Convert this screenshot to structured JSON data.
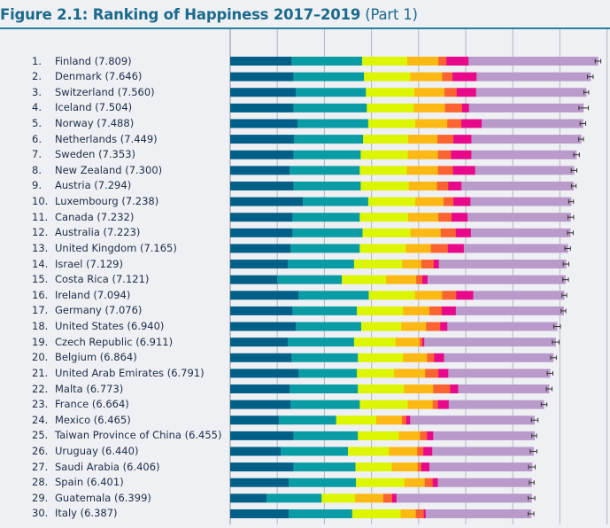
{
  "title": {
    "main": "Figure 2.1: Ranking of Happiness 2017–2019",
    "part": "(Part 1)"
  },
  "chart_data": {
    "type": "bar",
    "orientation": "horizontal",
    "stacked": true,
    "xlim": [
      0,
      8
    ],
    "grid": true,
    "error_bars": true,
    "segment_colors": [
      "#005f87",
      "#0a9ca5",
      "#dcf500",
      "#fdb913",
      "#fb6330",
      "#e8098a",
      "#b99aca"
    ],
    "rows": [
      {
        "rank": "1.",
        "label": "Finland (7.809)",
        "score": 7.809,
        "segments": [
          1.3,
          1.5,
          0.96,
          0.66,
          0.17,
          0.47,
          2.75
        ],
        "ci": 0.06
      },
      {
        "rank": "2.",
        "label": "Denmark (7.646)",
        "score": 7.646,
        "segments": [
          1.34,
          1.5,
          0.98,
          0.68,
          0.22,
          0.51,
          2.42
        ],
        "ci": 0.06
      },
      {
        "rank": "3.",
        "label": "Switzerland (7.560)",
        "score": 7.56,
        "segments": [
          1.39,
          1.49,
          1.03,
          0.64,
          0.26,
          0.41,
          2.34
        ],
        "ci": 0.05
      },
      {
        "rank": "4.",
        "label": "Iceland (7.504)",
        "score": 7.504,
        "segments": [
          1.34,
          1.56,
          1.0,
          0.66,
          0.36,
          0.15,
          2.43
        ],
        "ci": 0.1
      },
      {
        "rank": "5.",
        "label": "Norway (7.488)",
        "score": 7.488,
        "segments": [
          1.43,
          1.5,
          1.0,
          0.68,
          0.3,
          0.43,
          2.15
        ],
        "ci": 0.06
      },
      {
        "rank": "6.",
        "label": "Netherlands (7.449)",
        "score": 7.449,
        "segments": [
          1.35,
          1.47,
          0.96,
          0.62,
          0.34,
          0.38,
          2.33
        ],
        "ci": 0.05
      },
      {
        "rank": "7.",
        "label": "Sweden (7.353)",
        "score": 7.353,
        "segments": [
          1.34,
          1.43,
          1.0,
          0.64,
          0.28,
          0.43,
          2.23
        ],
        "ci": 0.06
      },
      {
        "rank": "8.",
        "label": "New Zealand (7.300)",
        "score": 7.3,
        "segments": [
          1.26,
          1.49,
          1.0,
          0.66,
          0.32,
          0.47,
          2.1
        ],
        "ci": 0.06
      },
      {
        "rank": "9.",
        "label": "Austria (7.294)",
        "score": 7.294,
        "segments": [
          1.34,
          1.43,
          1.02,
          0.6,
          0.24,
          0.28,
          2.38
        ],
        "ci": 0.05
      },
      {
        "rank": "10.",
        "label": "Luxembourg (7.238)",
        "score": 7.238,
        "segments": [
          1.54,
          1.39,
          1.0,
          0.6,
          0.21,
          0.36,
          2.14
        ],
        "ci": 0.05
      },
      {
        "rank": "11.",
        "label": "Canada (7.232)",
        "score": 7.232,
        "segments": [
          1.32,
          1.43,
          1.03,
          0.64,
          0.28,
          0.34,
          2.19
        ],
        "ci": 0.06
      },
      {
        "rank": "12.",
        "label": "Australia (7.223)",
        "score": 7.223,
        "segments": [
          1.32,
          1.49,
          1.02,
          0.64,
          0.32,
          0.32,
          2.11
        ],
        "ci": 0.06
      },
      {
        "rank": "13.",
        "label": "United Kingdom (7.165)",
        "score": 7.165,
        "segments": [
          1.28,
          1.47,
          0.98,
          0.53,
          0.36,
          0.34,
          2.21
        ],
        "ci": 0.06
      },
      {
        "rank": "14.",
        "label": "Israel (7.129)",
        "score": 7.129,
        "segments": [
          1.22,
          1.41,
          1.02,
          0.41,
          0.26,
          0.11,
          2.7
        ],
        "ci": 0.06
      },
      {
        "rank": "15.",
        "label": "Costa Rica (7.121)",
        "score": 7.121,
        "segments": [
          1.0,
          1.37,
          0.94,
          0.64,
          0.13,
          0.11,
          2.93
        ],
        "ci": 0.06
      },
      {
        "rank": "16.",
        "label": "Ireland (7.094)",
        "score": 7.094,
        "segments": [
          1.45,
          1.49,
          0.98,
          0.58,
          0.3,
          0.36,
          1.93
        ],
        "ci": 0.05
      },
      {
        "rank": "17.",
        "label": "Germany (7.076)",
        "score": 7.076,
        "segments": [
          1.32,
          1.37,
          0.98,
          0.56,
          0.26,
          0.3,
          2.29
        ],
        "ci": 0.05
      },
      {
        "rank": "18.",
        "label": "United States (6.940)",
        "score": 6.94,
        "segments": [
          1.39,
          1.39,
          0.85,
          0.53,
          0.3,
          0.15,
          2.33
        ],
        "ci": 0.07
      },
      {
        "rank": "19.",
        "label": "Czech Republic (6.911)",
        "score": 6.911,
        "segments": [
          1.22,
          1.41,
          0.88,
          0.51,
          0.06,
          0.04,
          2.79
        ],
        "ci": 0.07
      },
      {
        "rank": "20.",
        "label": "Belgium (6.864)",
        "score": 6.864,
        "segments": [
          1.3,
          1.41,
          0.96,
          0.51,
          0.15,
          0.21,
          2.32
        ],
        "ci": 0.06
      },
      {
        "rank": "21.",
        "label": "United Arab Emirates (6.791)",
        "score": 6.791,
        "segments": [
          1.45,
          1.24,
          0.79,
          0.66,
          0.28,
          0.21,
          2.16
        ],
        "ci": 0.06
      },
      {
        "rank": "22.",
        "label": "Malta (6.773)",
        "score": 6.773,
        "segments": [
          1.26,
          1.45,
          0.98,
          0.62,
          0.36,
          0.17,
          1.93
        ],
        "ci": 0.06
      },
      {
        "rank": "23.",
        "label": "France (6.664)",
        "score": 6.664,
        "segments": [
          1.28,
          1.47,
          1.02,
          0.53,
          0.11,
          0.23,
          2.02
        ],
        "ci": 0.06
      },
      {
        "rank": "24.",
        "label": "Mexico (6.465)",
        "score": 6.465,
        "segments": [
          1.03,
          1.22,
          0.85,
          0.55,
          0.09,
          0.08,
          2.64
        ],
        "ci": 0.07
      },
      {
        "rank": "25.",
        "label": "Taiwan Province of China (6.455)",
        "score": 6.455,
        "segments": [
          1.34,
          1.37,
          0.87,
          0.45,
          0.15,
          0.13,
          2.15
        ],
        "ci": 0.05
      },
      {
        "rank": "26.",
        "label": "Uruguay (6.440)",
        "score": 6.44,
        "segments": [
          1.07,
          1.43,
          0.87,
          0.6,
          0.13,
          0.19,
          2.15
        ],
        "ci": 0.07
      },
      {
        "rank": "27.",
        "label": "Saudi Arabia (6.406)",
        "score": 6.406,
        "segments": [
          1.34,
          1.32,
          0.77,
          0.55,
          0.08,
          0.17,
          2.18
        ],
        "ci": 0.07
      },
      {
        "rank": "28.",
        "label": "Spain (6.401)",
        "score": 6.401,
        "segments": [
          1.24,
          1.43,
          1.03,
          0.43,
          0.17,
          0.11,
          1.99
        ],
        "ci": 0.05
      },
      {
        "rank": "29.",
        "label": "Guatemala (6.399)",
        "score": 6.399,
        "segments": [
          0.77,
          1.17,
          0.71,
          0.6,
          0.19,
          0.09,
          2.87
        ],
        "ci": 0.07
      },
      {
        "rank": "30.",
        "label": "Italy (6.387)",
        "score": 6.387,
        "segments": [
          1.24,
          1.35,
          1.03,
          0.32,
          0.17,
          0.04,
          2.24
        ],
        "ci": 0.06
      }
    ]
  }
}
